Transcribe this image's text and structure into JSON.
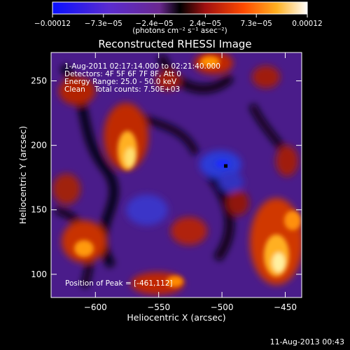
{
  "chart_data": {
    "type": "heatmap",
    "title": "Reconstructed RHESSI Image",
    "xlabel": "Heliocentric X (arcsec)",
    "ylabel": "Heliocentric Y (arcsec)",
    "xlim": [
      -635,
      -437
    ],
    "ylim": [
      82,
      272
    ],
    "x_ticks": [
      -600,
      -550,
      -500,
      -450
    ],
    "x_tick_labels": [
      "−600",
      "−550",
      "−500",
      "−450"
    ],
    "y_ticks": [
      100,
      150,
      200,
      250
    ],
    "y_tick_labels": [
      "100",
      "150",
      "200",
      "250"
    ],
    "colorbar": {
      "range": [
        -0.00012,
        0.00012
      ],
      "tick_labels": [
        "−0.00012",
        "−7.3e−05",
        "−2.4e−05",
        "2.4e−05",
        "7.3e−05",
        "0.00012"
      ],
      "unit_label": "(photons cm⁻² s⁻¹ asec⁻²)"
    },
    "annotations": [
      "1-Aug-2011 02:17:14.000 to 02:21:40.000",
      "Detectors: 4F 5F 6F 7F 8F, Att 0",
      "Energy Range: 25.0 - 50.0 keV",
      "Clean    Total counts: 7.50E+03"
    ],
    "peak_label": "Position of Peak = [-461,112]",
    "peak": {
      "x": -461,
      "y": 112
    },
    "min_marker": {
      "x": -497,
      "y": 184
    },
    "grid": false,
    "legend": "none"
  },
  "footer": {
    "timestamp": "11-Aug-2013 00:43"
  },
  "colors": {
    "background": "#000000",
    "low": "#0a10ff",
    "mid": "#000000",
    "high": "#ffffff",
    "map_negative": "#5020a0",
    "map_positive": "#e03000"
  }
}
